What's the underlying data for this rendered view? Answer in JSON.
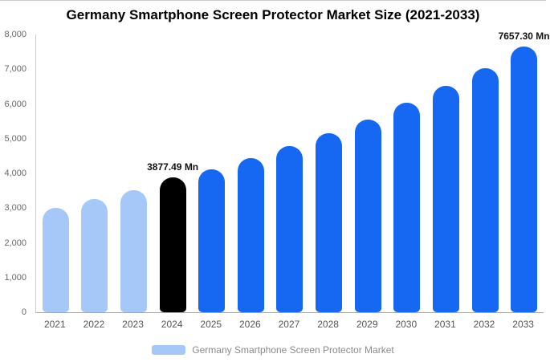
{
  "chart_data": {
    "type": "bar",
    "title": "Germany Smartphone Screen Protector Market Size (2021-2033)",
    "xlabel": "",
    "ylabel": "",
    "ylim": [
      0,
      8000
    ],
    "grid": false,
    "legend_position": "bottom",
    "legend": "Germany Smartphone Screen Protector Market",
    "categories": [
      "2021",
      "2022",
      "2023",
      "2024",
      "2025",
      "2026",
      "2027",
      "2028",
      "2029",
      "2030",
      "2031",
      "2032",
      "2033"
    ],
    "values": [
      3000,
      3270,
      3520,
      3877.49,
      4120,
      4450,
      4790,
      5150,
      5560,
      6030,
      6530,
      7040,
      7657.3
    ],
    "bar_colors": [
      "#a6c8f9",
      "#a6c8f9",
      "#a6c8f9",
      "#000000",
      "#1667f1",
      "#1667f1",
      "#1667f1",
      "#1667f1",
      "#1667f1",
      "#1667f1",
      "#1667f1",
      "#1667f1",
      "#1667f1"
    ],
    "annotations": [
      {
        "index": 3,
        "label": "3877.49 Mn"
      },
      {
        "index": 12,
        "label": "7657.30 Mn"
      }
    ],
    "yticks": [
      "8,000",
      "7,000",
      "6,000",
      "5,000",
      "4,000",
      "3,000",
      "2,000",
      "1,000",
      "0"
    ],
    "colors": {
      "historical": "#a6c8f9",
      "highlight": "#000000",
      "forecast": "#1667f1",
      "legend_swatch": "#a6c8f9",
      "axis_line": "#cccccc",
      "tick_text": "#666666"
    }
  }
}
